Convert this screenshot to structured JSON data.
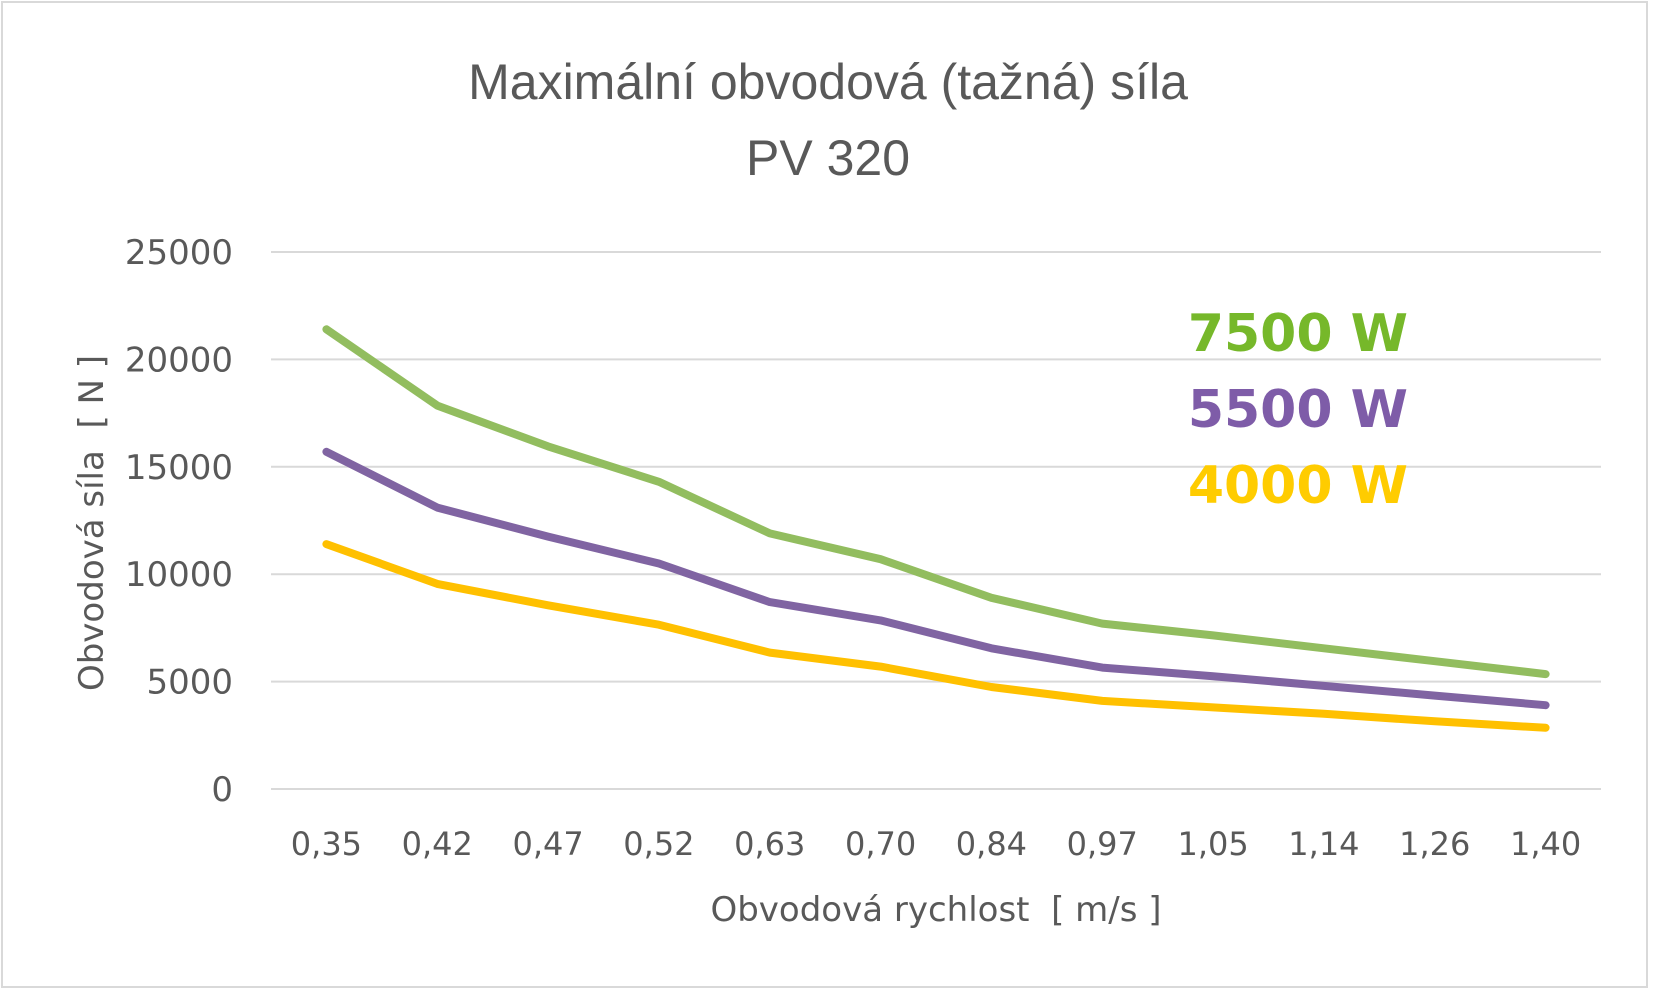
{
  "chart_data": {
    "type": "line",
    "title_line1": "Maximální obvodová (tažná) síla",
    "title_line2": "PV 320",
    "xlabel": "Obvodová rychlost  [ m/s ]",
    "ylabel": "Obvodová síla  [ N ]",
    "ylim": [
      0,
      25000
    ],
    "yticks": [
      "0",
      "5000",
      "10000",
      "15000",
      "20000",
      "25000"
    ],
    "grid": true,
    "legend_position": "top-right",
    "categories": [
      "0,35",
      "0,42",
      "0,47",
      "0,52",
      "0,63",
      "0,70",
      "0,84",
      "0,97",
      "1,05",
      "1,14",
      "1,26",
      "1,40"
    ],
    "series": [
      {
        "name": "7500 W",
        "color": "#92bd5f",
        "label_color": "#76b82a",
        "values": [
          21400,
          17850,
          15950,
          14300,
          11900,
          10700,
          8900,
          7700,
          7150,
          6550,
          5950,
          5350
        ]
      },
      {
        "name": "5500 W",
        "color": "#8064a2",
        "label_color": "#7e5ca8",
        "values": [
          15700,
          13100,
          11750,
          10500,
          8700,
          7850,
          6550,
          5650,
          5250,
          4800,
          4350,
          3900
        ]
      },
      {
        "name": "4000 W",
        "color": "#ffc000",
        "label_color": "#ffcc00",
        "values": [
          11400,
          9550,
          8550,
          7650,
          6350,
          5700,
          4750,
          4100,
          3800,
          3500,
          3150,
          2850
        ]
      }
    ]
  }
}
